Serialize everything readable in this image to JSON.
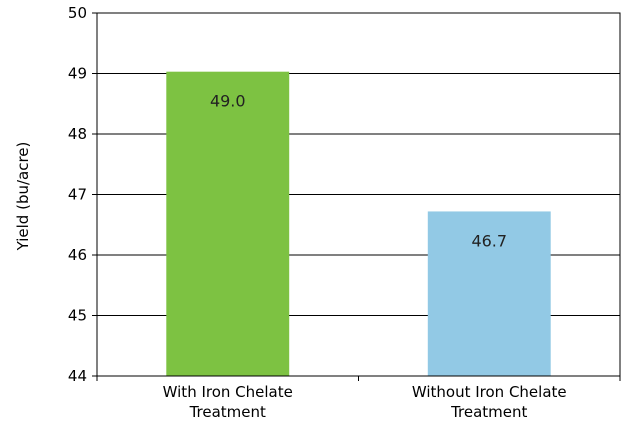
{
  "chart_data": {
    "type": "bar",
    "title": "",
    "xlabel": "",
    "ylabel": "Yield (bu/acre)",
    "ylim": [
      44,
      50
    ],
    "yticks": [
      44,
      45,
      46,
      47,
      48,
      49,
      50
    ],
    "grid": true,
    "categories": [
      [
        "With Iron Chelate",
        "Treatment"
      ],
      [
        "Without Iron Chelate",
        "Treatment"
      ]
    ],
    "values": [
      49.03,
      46.72
    ],
    "data_labels": [
      "49.0",
      "46.7"
    ],
    "colors": [
      "#7dc242",
      "#92c9e5"
    ]
  }
}
